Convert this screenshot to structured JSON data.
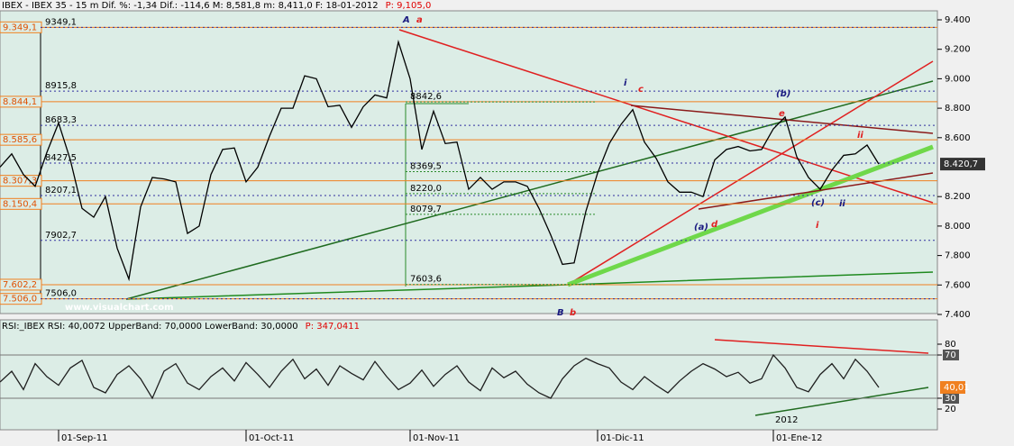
{
  "chart_data": [
    {
      "type": "line",
      "header": [
        "IBEX - IBEX 35 -  15 m Dif. %: -1,34 Dif.: -114,6 M: 8,581,8 m: 8,411,0 F: 18-01-2012",
        "P: 9,105,0"
      ],
      "watermark": "www.visualchart.com",
      "categories": [
        null,
        null,
        null,
        null,
        null,
        "01-Sep-11",
        null,
        null,
        null,
        null,
        null,
        null,
        null,
        null,
        null,
        null,
        null,
        null,
        null,
        null,
        null,
        "01-Oct-11",
        null,
        null,
        null,
        null,
        null,
        null,
        null,
        null,
        null,
        null,
        null,
        null,
        null,
        "01-Nov-11",
        null,
        null,
        null,
        null,
        null,
        null,
        null,
        null,
        null,
        null,
        null,
        null,
        null,
        null,
        null,
        "01-Dic-11",
        null,
        null,
        null,
        null,
        null,
        null,
        null,
        null,
        null,
        null,
        null,
        null,
        null,
        null,
        "01-Ene-12",
        null,
        null,
        null,
        null,
        null,
        null,
        null,
        null,
        null
      ],
      "series": [
        {
          "name": "IBEX 35",
          "color": "#000000",
          "values": [
            8400,
            8490,
            8350,
            8270,
            8500,
            8700,
            8450,
            8120,
            8060,
            8200,
            7850,
            7640,
            8130,
            8330,
            8320,
            8300,
            7950,
            8000,
            8350,
            8520,
            8530,
            8300,
            8400,
            8610,
            8800,
            8800,
            9020,
            9000,
            8810,
            8820,
            8670,
            8810,
            8890,
            8870,
            9250,
            9000,
            8520,
            8780,
            8560,
            8570,
            8250,
            8330,
            8250,
            8300,
            8300,
            8270,
            8120,
            7940,
            7740,
            7750,
            8100,
            8360,
            8560,
            8690,
            8790,
            8570,
            8460,
            8300,
            8230,
            8230,
            8200,
            8450,
            8520,
            8540,
            8510,
            8520,
            8660,
            8740,
            8470,
            8330,
            8250,
            8380,
            8480,
            8490,
            8550,
            8420.7
          ]
        }
      ],
      "ylim": [
        7400,
        9400
      ],
      "yticks": [
        {
          "value": 7400,
          "label": "7.400"
        },
        {
          "value": 7600,
          "label": "7.600"
        },
        {
          "value": 7800,
          "label": "7.800"
        },
        {
          "value": 8000,
          "label": "8.000"
        },
        {
          "value": 8200,
          "label": "8.200"
        },
        {
          "value": 8600,
          "label": "8.600"
        },
        {
          "value": 8800,
          "label": "8.800"
        },
        {
          "value": 9000,
          "label": "9.000"
        },
        {
          "value": 9200,
          "label": "9.200"
        },
        {
          "value": 9400,
          "label": "9.400"
        }
      ],
      "current": {
        "value": 8420.7,
        "label": "8.420,7"
      },
      "levels": [
        {
          "value": 9349.1,
          "label": "9.349,1"
        },
        {
          "value": 8844.1,
          "label": "8.844,1"
        },
        {
          "value": 8585.6,
          "label": "8.585,6"
        },
        {
          "value": 8307.3,
          "label": "8.307,3"
        },
        {
          "value": 8150.4,
          "label": "8.150,4"
        },
        {
          "value": 7602.2,
          "label": "7.602,2"
        },
        {
          "value": 7506.0,
          "label": "7.506,0"
        }
      ],
      "marks": [
        {
          "value": 9349.1,
          "label": "9349,1"
        },
        {
          "value": 8915.8,
          "label": "8915,8"
        },
        {
          "value": 8683.3,
          "label": "8683,3"
        },
        {
          "value": 8427.5,
          "label": "8427,5"
        },
        {
          "value": 8207.1,
          "label": "8207,1"
        },
        {
          "value": 7902.7,
          "label": "7902,7"
        },
        {
          "value": 7506.0,
          "label": "7506,0"
        }
      ],
      "retracements": [
        {
          "value": 8842.6,
          "label": "8842,6"
        },
        {
          "value": 8369.5,
          "label": "8369,5"
        },
        {
          "value": 8220.0,
          "label": "8220,0"
        },
        {
          "value": 8079.7,
          "label": "8079,7"
        },
        {
          "value": 7603.6,
          "label": "7603,6"
        }
      ],
      "annotations": [
        "A",
        "a",
        "B",
        "b",
        "i",
        "c",
        "(b)",
        "e",
        "ii",
        "(a)",
        "d",
        "(c)",
        "ii",
        "i"
      ]
    },
    {
      "type": "line",
      "header": [
        "RSI:_IBEX RSI: 40,0072 UpperBand: 70,0000 LowerBand: 30,0000",
        "P: 347,0411"
      ],
      "series": [
        {
          "name": "RSI",
          "color": "#202020",
          "values": [
            45,
            55,
            38,
            62,
            50,
            42,
            58,
            65,
            40,
            35,
            52,
            60,
            48,
            30,
            55,
            62,
            44,
            38,
            50,
            58,
            46,
            63,
            52,
            40,
            55,
            66,
            48,
            57,
            42,
            60,
            53,
            47,
            64,
            50,
            38,
            44,
            56,
            41,
            52,
            60,
            45,
            37,
            58,
            49,
            55,
            43,
            35,
            30,
            48,
            60,
            67,
            62,
            58,
            45,
            38,
            50,
            42,
            35,
            46,
            55,
            62,
            57,
            50,
            54,
            44,
            48,
            70,
            58,
            40,
            36,
            52,
            62,
            48,
            66,
            55,
            40.01
          ]
        }
      ],
      "ylim": [
        20,
        80
      ],
      "yticks": [
        20,
        30,
        70,
        80
      ],
      "bands": [
        30,
        70
      ],
      "current": {
        "value": 40.01,
        "label": "40,01"
      },
      "annotations": [
        "2012"
      ]
    }
  ]
}
